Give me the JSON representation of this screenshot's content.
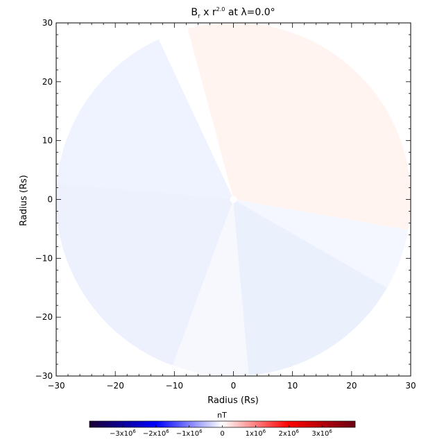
{
  "chart_data": {
    "type": "heatmap",
    "title": {
      "base": "B",
      "base_sub": "r",
      "mid": " x r",
      "mid_sup": "2.0",
      "tail": " at λ=0.0°"
    },
    "xlabel": "Radius (Rs)",
    "ylabel": "Radius (Rs)",
    "xlim": [
      -30,
      30
    ],
    "ylim": [
      -30,
      30
    ],
    "xticks": [
      -30,
      -20,
      -10,
      0,
      10,
      20,
      30
    ],
    "yticks": [
      -30,
      -20,
      -10,
      0,
      10,
      20,
      30
    ],
    "xtick_labels": [
      "−30",
      "−20",
      "−10",
      "0",
      "10",
      "20",
      "30"
    ],
    "ytick_labels": [
      "−30",
      "−20",
      "−10",
      "0",
      "10",
      "20",
      "30"
    ],
    "disk_radius": 30,
    "sectors": [
      {
        "from_deg": -10,
        "to_deg": 105,
        "color": "#fff4f0",
        "sign": "positive"
      },
      {
        "from_deg": 105,
        "to_deg": 115,
        "color": "#ffffff",
        "sign": "neutral"
      },
      {
        "from_deg": 115,
        "to_deg": 175,
        "color": "#eef3ff",
        "sign": "negative"
      },
      {
        "from_deg": 175,
        "to_deg": 250,
        "color": "#ecf1fd",
        "sign": "negative"
      },
      {
        "from_deg": 250,
        "to_deg": 275,
        "color": "#f6f8fe",
        "sign": "negative"
      },
      {
        "from_deg": 275,
        "to_deg": 330,
        "color": "#ebf0fd",
        "sign": "negative"
      },
      {
        "from_deg": 330,
        "to_deg": 350,
        "color": "#f4f7ff",
        "sign": "negative"
      }
    ],
    "colorbar": {
      "unit": "nT",
      "range": [
        -4000000,
        4000000
      ],
      "stops": [
        "#1a0033",
        "#0000ff",
        "#ffffff",
        "#ff0000",
        "#6b0012"
      ],
      "tick_values": [
        -3000000,
        -2000000,
        -1000000,
        0,
        1000000,
        2000000,
        3000000
      ],
      "tick_labels": [
        {
          "mant": "−3x10",
          "exp": "6"
        },
        {
          "mant": "−2x10",
          "exp": "6"
        },
        {
          "mant": "−1x10",
          "exp": "6"
        },
        {
          "mant": "0",
          "exp": ""
        },
        {
          "mant": "1x10",
          "exp": "6"
        },
        {
          "mant": "2x10",
          "exp": "6"
        },
        {
          "mant": "3x10",
          "exp": "6"
        }
      ]
    }
  }
}
